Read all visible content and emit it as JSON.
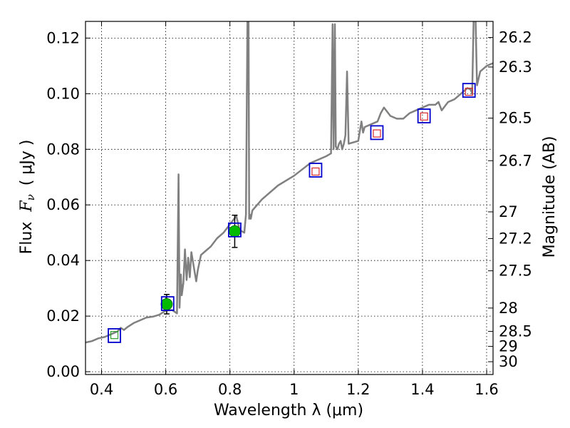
{
  "chart_data": {
    "type": "line",
    "xlabel": "Wavelength  λ (μm)",
    "ylabel": "Flux  F_ν  ( μJy )",
    "ylabel_parts": [
      "Flux",
      "F",
      "ν",
      "( μJy )"
    ],
    "y2label": "Magnitude (AB)",
    "xlim": [
      0.35,
      1.62
    ],
    "ylim": [
      -0.001,
      0.126
    ],
    "grid": true,
    "x_ticks": [
      0.4,
      0.6,
      0.8,
      1.0,
      1.2,
      1.4,
      1.6
    ],
    "x_tick_labels": [
      "0.4",
      "0.6",
      "0.8",
      "1",
      "1.2",
      "1.4",
      "1.6"
    ],
    "y_ticks": [
      0.0,
      0.02,
      0.04,
      0.06,
      0.08,
      0.1,
      0.12
    ],
    "y_tick_labels": [
      "0.00",
      "0.02",
      "0.04",
      "0.06",
      "0.08",
      "0.10",
      "0.12"
    ],
    "mag_ticks": [
      {
        "label": "26.2",
        "flux": 0.1202
      },
      {
        "label": "26.3",
        "flux": 0.1096
      },
      {
        "label": "26.5",
        "flux": 0.0912
      },
      {
        "label": "26.7",
        "flux": 0.0759
      },
      {
        "label": "27",
        "flux": 0.0575
      },
      {
        "label": "27.2",
        "flux": 0.0479
      },
      {
        "label": "27.5",
        "flux": 0.0363
      },
      {
        "label": "28",
        "flux": 0.0229
      },
      {
        "label": "28.5",
        "flux": 0.0145
      },
      {
        "label": "29",
        "flux": 0.0091
      },
      {
        "label": "30",
        "flux": 0.0036
      }
    ],
    "series": [
      {
        "name": "model spectrum",
        "color": "#808080",
        "x": [
          0.35,
          0.37,
          0.39,
          0.41,
          0.43,
          0.45,
          0.46,
          0.47,
          0.48,
          0.5,
          0.52,
          0.54,
          0.56,
          0.58,
          0.6,
          0.62,
          0.635,
          0.64,
          0.643,
          0.647,
          0.65,
          0.655,
          0.66,
          0.665,
          0.67,
          0.675,
          0.68,
          0.69,
          0.695,
          0.7,
          0.71,
          0.72,
          0.74,
          0.76,
          0.78,
          0.8,
          0.82,
          0.83,
          0.845,
          0.85,
          0.855,
          0.858,
          0.86,
          0.862,
          0.865,
          0.87,
          0.9,
          0.95,
          1.0,
          1.05,
          1.1,
          1.115,
          1.12,
          1.123,
          1.127,
          1.13,
          1.135,
          1.14,
          1.145,
          1.15,
          1.155,
          1.16,
          1.165,
          1.17,
          1.2,
          1.21,
          1.215,
          1.22,
          1.24,
          1.26,
          1.27,
          1.28,
          1.3,
          1.32,
          1.34,
          1.36,
          1.38,
          1.4,
          1.42,
          1.44,
          1.45,
          1.46,
          1.48,
          1.5,
          1.52,
          1.54,
          1.55,
          1.555,
          1.56,
          1.565,
          1.57,
          1.58,
          1.6,
          1.62
        ],
        "y": [
          0.0105,
          0.011,
          0.012,
          0.0125,
          0.0135,
          0.0145,
          0.0158,
          0.015,
          0.016,
          0.0175,
          0.0185,
          0.0195,
          0.0198,
          0.0205,
          0.022,
          0.0222,
          0.021,
          0.071,
          0.023,
          0.035,
          0.0275,
          0.032,
          0.044,
          0.033,
          0.041,
          0.034,
          0.043,
          0.036,
          0.0325,
          0.0365,
          0.042,
          0.043,
          0.045,
          0.048,
          0.05,
          0.053,
          0.056,
          0.051,
          0.05,
          0.0565,
          0.13,
          0.13,
          0.055,
          0.0565,
          0.055,
          0.058,
          0.062,
          0.067,
          0.0705,
          0.075,
          0.0775,
          0.0785,
          0.125,
          0.08,
          0.125,
          0.081,
          0.08,
          0.082,
          0.083,
          0.08,
          0.082,
          0.085,
          0.108,
          0.082,
          0.083,
          0.09,
          0.086,
          0.088,
          0.089,
          0.09,
          0.093,
          0.095,
          0.092,
          0.091,
          0.091,
          0.093,
          0.094,
          0.095,
          0.096,
          0.096,
          0.097,
          0.094,
          0.097,
          0.098,
          0.1,
          0.102,
          0.1015,
          0.1,
          0.13,
          0.13,
          0.103,
          0.108,
          0.11,
          0.111
        ]
      }
    ],
    "photometry_boxes": [
      {
        "x": 0.44,
        "y": 0.013
      },
      {
        "x": 0.606,
        "y": 0.0245
      },
      {
        "x": 0.815,
        "y": 0.051
      },
      {
        "x": 1.067,
        "y": 0.0725
      },
      {
        "x": 1.258,
        "y": 0.086
      },
      {
        "x": 1.405,
        "y": 0.092
      },
      {
        "x": 1.545,
        "y": 0.1012
      }
    ],
    "model_points": [
      {
        "x": 0.44,
        "y": 0.0132,
        "color": "#2fa02f"
      },
      {
        "x": 1.067,
        "y": 0.072,
        "color": "#d62728"
      },
      {
        "x": 1.258,
        "y": 0.0857,
        "color": "#d62728"
      },
      {
        "x": 1.405,
        "y": 0.0918,
        "color": "#d62728"
      },
      {
        "x": 1.545,
        "y": 0.1007,
        "color": "#d62728"
      }
    ],
    "measurements": [
      {
        "x": 0.603,
        "y": 0.0243,
        "err": 0.0035
      },
      {
        "x": 0.815,
        "y": 0.0505,
        "err": 0.0058
      }
    ],
    "box_color": "#0000cc",
    "measurement_color": "#00bb00"
  }
}
